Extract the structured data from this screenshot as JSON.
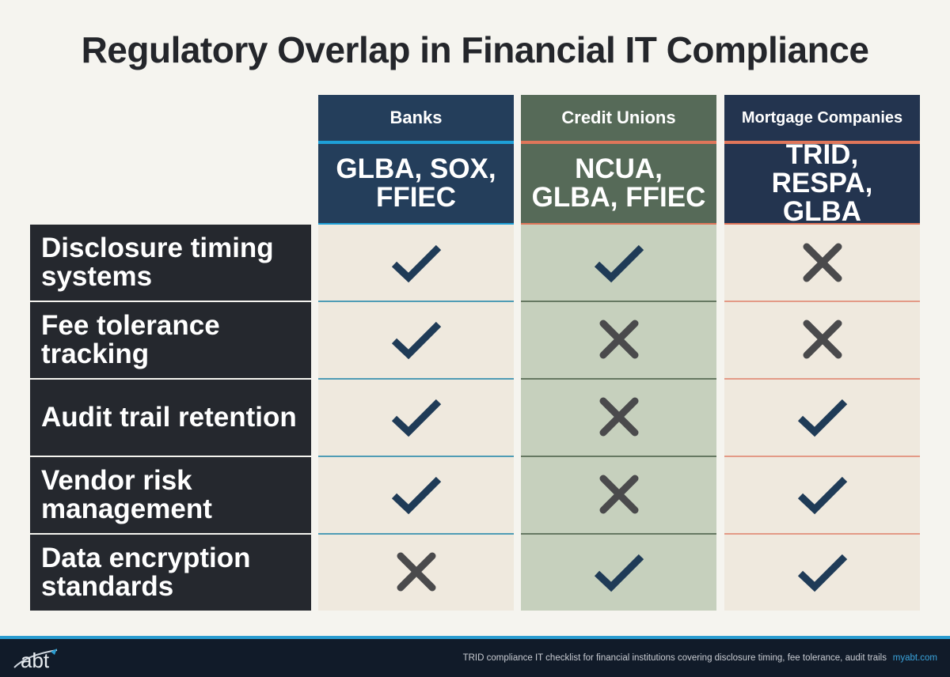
{
  "title": "Regulatory Overlap in Financial IT Compliance",
  "columns": [
    {
      "label": "Banks",
      "regulations": "GLBA, SOX, FFIEC",
      "header_color": "#243e5b",
      "accent_color": "#1ea0d8",
      "cell_color": "#efe9de"
    },
    {
      "label": "Credit Unions",
      "regulations": "NCUA, GLBA, FFIEC",
      "header_color": "#566a58",
      "accent_color": "#e0765a",
      "cell_color": "#c6d0bd"
    },
    {
      "label": "Mortgage Companies",
      "regulations": "TRID, RESPA, GLBA",
      "header_color": "#23344f",
      "accent_color": "#e0765a",
      "cell_color": "#efe9de"
    }
  ],
  "rows": [
    {
      "label": "Disclosure timing systems",
      "values": [
        "check",
        "check",
        "cross"
      ]
    },
    {
      "label": "Fee tolerance tracking",
      "values": [
        "check",
        "cross",
        "cross"
      ]
    },
    {
      "label": "Audit trail retention",
      "values": [
        "check",
        "cross",
        "check"
      ]
    },
    {
      "label": "Vendor risk management",
      "values": [
        "check",
        "cross",
        "check"
      ]
    },
    {
      "label": "Data encryption standards",
      "values": [
        "cross",
        "check",
        "check"
      ]
    }
  ],
  "icons": {
    "check": "check-icon",
    "cross": "cross-icon"
  },
  "colors": {
    "check": "#1f3b57",
    "cross": "#4a4a4c"
  },
  "footer": {
    "logo": "abt",
    "caption": "TRID compliance IT checklist for financial institutions covering disclosure timing, fee tolerance, audit trails",
    "site": "myabt.com"
  }
}
